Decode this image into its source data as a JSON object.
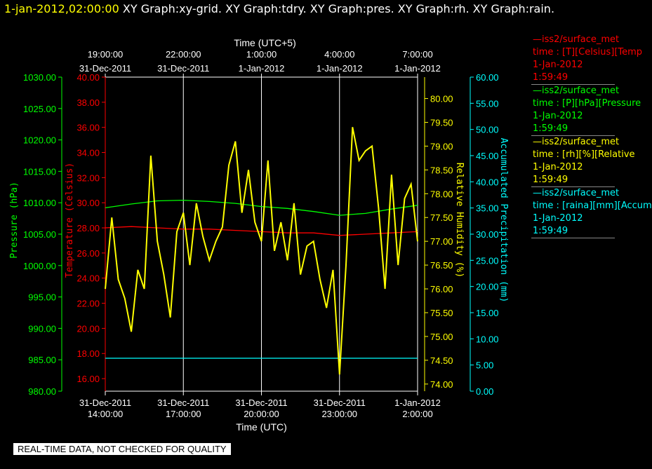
{
  "title": {
    "timestamp": "1-jan-2012,02:00:00",
    "tabs": "XY Graph:xy-grid.  XY Graph:tdry.  XY Graph:pres.  XY Graph:rh.  XY Graph:rain."
  },
  "legend": [
    {
      "line1": "—iss2/surface_met",
      "line2": "time : [T][Celsius][Temp",
      "line3": "1-Jan-2012",
      "line4": "1:59:49",
      "color": "#ff0000"
    },
    {
      "line1": "—iss2/surface_met",
      "line2": "time : [P][hPa][Pressure",
      "line3": "1-Jan-2012",
      "line4": "1:59:49",
      "color": "#00ff00"
    },
    {
      "line1": "—iss2/surface_met",
      "line2": "time : [rh][%][Relative",
      "line3": "1-Jan-2012",
      "line4": "1:59:49",
      "color": "#ffff00"
    },
    {
      "line1": "—iss2/surface_met",
      "line2": "time : [raina][mm][Accum",
      "line3": "1-Jan-2012",
      "line4": "1:59:49",
      "color": "#00ffff"
    }
  ],
  "banner": "REAL-TIME DATA, NOT CHECKED FOR QUALITY",
  "chart_data": {
    "type": "line",
    "background": "#000000",
    "grid": true,
    "colors": {
      "pressure": "#00ff00",
      "temperature": "#ff0000",
      "rh": "#ffff00",
      "rain": "#00ffff",
      "grid": "#ffffff"
    },
    "x_bottom": {
      "label": "Time (UTC)",
      "ticks": [
        {
          "x": 0,
          "line1": "31-Dec-2011",
          "line2": "14:00:00"
        },
        {
          "x": 3,
          "line1": "31-Dec-2011",
          "line2": "17:00:00"
        },
        {
          "x": 6,
          "line1": "31-Dec-2011",
          "line2": "20:00:00"
        },
        {
          "x": 9,
          "line1": "31-Dec-2011",
          "line2": "23:00:00"
        },
        {
          "x": 12,
          "line1": "1-Jan-2012",
          "line2": "2:00:00"
        }
      ],
      "xlim": [
        0,
        12
      ]
    },
    "x_top": {
      "label": "Time (UTC+5)",
      "ticks": [
        {
          "x": 0,
          "line1": "19:00:00",
          "line2": "31-Dec-2011"
        },
        {
          "x": 3,
          "line1": "22:00:00",
          "line2": "31-Dec-2011"
        },
        {
          "x": 6,
          "line1": "1:00:00",
          "line2": "1-Jan-2012"
        },
        {
          "x": 9,
          "line1": "4:00:00",
          "line2": "1-Jan-2012"
        },
        {
          "x": 12,
          "line1": "7:00:00",
          "line2": "1-Jan-2012"
        }
      ]
    },
    "axes": {
      "pressure": {
        "label": "Pressure (hPa)",
        "ylim": [
          980,
          1030
        ],
        "ticks": [
          "980.00",
          "985.00",
          "990.00",
          "995.00",
          "1000.00",
          "1005.00",
          "1010.00",
          "1015.00",
          "1020.00",
          "1025.00",
          "1030.00"
        ]
      },
      "temperature": {
        "label": "Temperature (Celsius)",
        "ylim": [
          15,
          40
        ],
        "ticks": [
          "16.00",
          "18.00",
          "20.00",
          "22.00",
          "24.00",
          "26.00",
          "28.00",
          "30.00",
          "32.00",
          "34.00",
          "36.00",
          "38.00",
          "40.00"
        ]
      },
      "rh": {
        "label": "Relative Humidity (%)",
        "ylim": [
          73.85,
          80.45
        ],
        "ticks": [
          "74.00",
          "74.50",
          "75.00",
          "75.50",
          "76.00",
          "76.50",
          "77.00",
          "77.50",
          "78.00",
          "78.50",
          "79.00",
          "79.50",
          "80.00"
        ]
      },
      "rain": {
        "label": "Accumulated Precipitation (mm)",
        "ylim": [
          0,
          60
        ],
        "ticks": [
          "0.00",
          "5.00",
          "10.00",
          "15.00",
          "20.00",
          "25.00",
          "30.00",
          "35.00",
          "40.00",
          "45.00",
          "50.00",
          "55.00",
          "60.00"
        ]
      }
    },
    "series": [
      {
        "name": "Pressure",
        "axis": "pressure",
        "x": [
          0,
          1,
          2,
          3,
          4,
          5,
          6,
          7,
          8,
          9,
          10,
          11,
          12
        ],
        "y": [
          1009.2,
          1009.8,
          1010.3,
          1010.4,
          1010.2,
          1009.9,
          1009.4,
          1009.1,
          1008.6,
          1008.0,
          1008.3,
          1009.0,
          1009.6
        ]
      },
      {
        "name": "Temperature",
        "axis": "temperature",
        "x": [
          0,
          1,
          2,
          3,
          4,
          5,
          6,
          7,
          8,
          9,
          10,
          11,
          12
        ],
        "y": [
          28.0,
          28.1,
          28.0,
          27.9,
          27.9,
          27.8,
          27.7,
          27.6,
          27.6,
          27.4,
          27.5,
          27.6,
          27.7
        ]
      },
      {
        "name": "Relative Humidity",
        "axis": "rh",
        "x": [
          0,
          0.25,
          0.5,
          0.75,
          1,
          1.25,
          1.5,
          1.75,
          2,
          2.25,
          2.5,
          2.75,
          3,
          3.25,
          3.5,
          3.75,
          4,
          4.25,
          4.5,
          4.75,
          5,
          5.25,
          5.5,
          5.75,
          6,
          6.25,
          6.5,
          6.75,
          7,
          7.25,
          7.5,
          7.75,
          8,
          8.25,
          8.5,
          8.75,
          9,
          9.25,
          9.5,
          9.75,
          10,
          10.25,
          10.5,
          10.75,
          11,
          11.25,
          11.5,
          11.75,
          12
        ],
        "y": [
          76.0,
          77.5,
          76.2,
          75.8,
          75.1,
          76.4,
          76.0,
          78.8,
          77.0,
          76.3,
          75.4,
          77.2,
          77.6,
          76.5,
          77.8,
          77.1,
          76.6,
          77.0,
          77.3,
          78.6,
          79.1,
          77.6,
          78.5,
          77.4,
          77.0,
          78.7,
          76.8,
          77.4,
          76.6,
          77.8,
          76.3,
          76.9,
          77.0,
          76.2,
          75.6,
          76.4,
          74.2,
          76.5,
          79.4,
          78.7,
          78.9,
          79.0,
          77.7,
          76.0,
          78.4,
          76.5,
          77.9,
          78.2,
          77.0
        ]
      },
      {
        "name": "Accumulated Precipitation",
        "axis": "rain",
        "x": [
          0,
          12
        ],
        "y": [
          6.3,
          6.3
        ]
      }
    ]
  }
}
